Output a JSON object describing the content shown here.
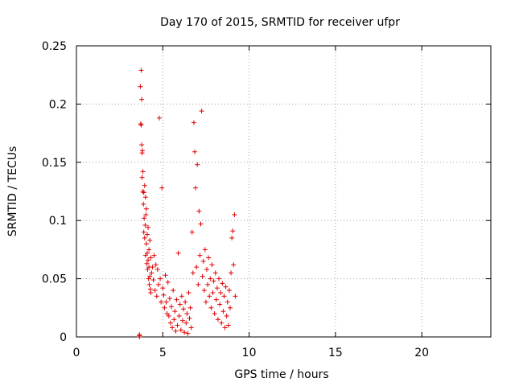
{
  "chart_data": {
    "type": "scatter",
    "title": "Day 170 of 2015, SRMTID for receiver ufpr",
    "xlabel": "GPS time / hours",
    "ylabel": "SRMTID / TECUs",
    "xlim": [
      0,
      24
    ],
    "ylim": [
      0,
      0.25
    ],
    "xticks": [
      0,
      5,
      10,
      15,
      20
    ],
    "xtick_labels": [
      "0",
      "5",
      "10",
      "15",
      "20"
    ],
    "yticks": [
      0,
      0.05,
      0.1,
      0.15,
      0.2,
      0.25
    ],
    "ytick_labels": [
      "0",
      "0.05",
      "0.1",
      "0.15",
      "0.2",
      "0.25"
    ],
    "grid": true,
    "marker": "+",
    "color": "#e00000",
    "series": [
      {
        "x": [
          3.65,
          3.65,
          3.65,
          3.7,
          3.72,
          3.75,
          3.75,
          3.78,
          3.78,
          3.8,
          3.8,
          3.82,
          3.85,
          3.85,
          3.88,
          3.9,
          3.9,
          3.92,
          3.95,
          3.95,
          3.98,
          4.0,
          4.0,
          4.02,
          4.05,
          4.05,
          4.08,
          4.1,
          4.1,
          4.12,
          4.15,
          4.15,
          4.18,
          4.2,
          4.2,
          4.22,
          4.25,
          4.25,
          4.28,
          4.3,
          4.3,
          4.35,
          4.4,
          4.45,
          4.5,
          4.55,
          4.6,
          4.65,
          4.7,
          4.75,
          4.8,
          4.85,
          4.9,
          4.95,
          5.0,
          5.05,
          5.1,
          5.15,
          5.2,
          5.25,
          5.3,
          5.35,
          5.4,
          5.45,
          5.5,
          5.55,
          5.6,
          5.65,
          5.7,
          5.75,
          5.8,
          5.85,
          5.9,
          5.95,
          6.0,
          6.05,
          6.1,
          6.15,
          6.2,
          6.25,
          6.3,
          6.35,
          6.4,
          6.45,
          6.5,
          6.55,
          6.6,
          6.65,
          6.7,
          6.75,
          6.8,
          6.85,
          6.9,
          6.95,
          7.0,
          7.05,
          7.1,
          7.15,
          7.2,
          7.25,
          7.3,
          7.35,
          7.4,
          7.45,
          7.5,
          7.55,
          7.6,
          7.65,
          7.7,
          7.75,
          7.8,
          7.85,
          7.9,
          7.95,
          8.0,
          8.05,
          8.1,
          8.15,
          8.2,
          8.25,
          8.3,
          8.35,
          8.4,
          8.45,
          8.5,
          8.55,
          8.6,
          8.65,
          8.7,
          8.75,
          8.8,
          8.85,
          8.9,
          8.95,
          9.0,
          9.05,
          9.1,
          9.15,
          9.2
        ],
        "y": [
          0.002,
          0.001,
          0.0,
          0.215,
          0.183,
          0.229,
          0.182,
          0.204,
          0.165,
          0.158,
          0.137,
          0.16,
          0.125,
          0.142,
          0.114,
          0.124,
          0.09,
          0.102,
          0.13,
          0.085,
          0.096,
          0.12,
          0.07,
          0.105,
          0.08,
          0.11,
          0.063,
          0.088,
          0.072,
          0.058,
          0.094,
          0.066,
          0.05,
          0.075,
          0.06,
          0.045,
          0.083,
          0.052,
          0.041,
          0.068,
          0.038,
          0.055,
          0.06,
          0.049,
          0.07,
          0.04,
          0.062,
          0.035,
          0.058,
          0.045,
          0.188,
          0.05,
          0.03,
          0.128,
          0.042,
          0.036,
          0.025,
          0.053,
          0.03,
          0.02,
          0.047,
          0.018,
          0.033,
          0.012,
          0.026,
          0.008,
          0.04,
          0.015,
          0.022,
          0.005,
          0.032,
          0.01,
          0.072,
          0.018,
          0.028,
          0.006,
          0.035,
          0.014,
          0.024,
          0.004,
          0.03,
          0.012,
          0.02,
          0.003,
          0.038,
          0.016,
          0.025,
          0.008,
          0.09,
          0.055,
          0.184,
          0.159,
          0.128,
          0.06,
          0.148,
          0.045,
          0.108,
          0.07,
          0.097,
          0.194,
          0.052,
          0.065,
          0.04,
          0.075,
          0.03,
          0.058,
          0.045,
          0.068,
          0.035,
          0.05,
          0.025,
          0.062,
          0.038,
          0.048,
          0.02,
          0.055,
          0.032,
          0.042,
          0.015,
          0.05,
          0.028,
          0.038,
          0.012,
          0.046,
          0.022,
          0.035,
          0.008,
          0.043,
          0.018,
          0.03,
          0.01,
          0.04,
          0.025,
          0.055,
          0.085,
          0.091,
          0.062,
          0.105,
          0.035
        ]
      }
    ]
  }
}
